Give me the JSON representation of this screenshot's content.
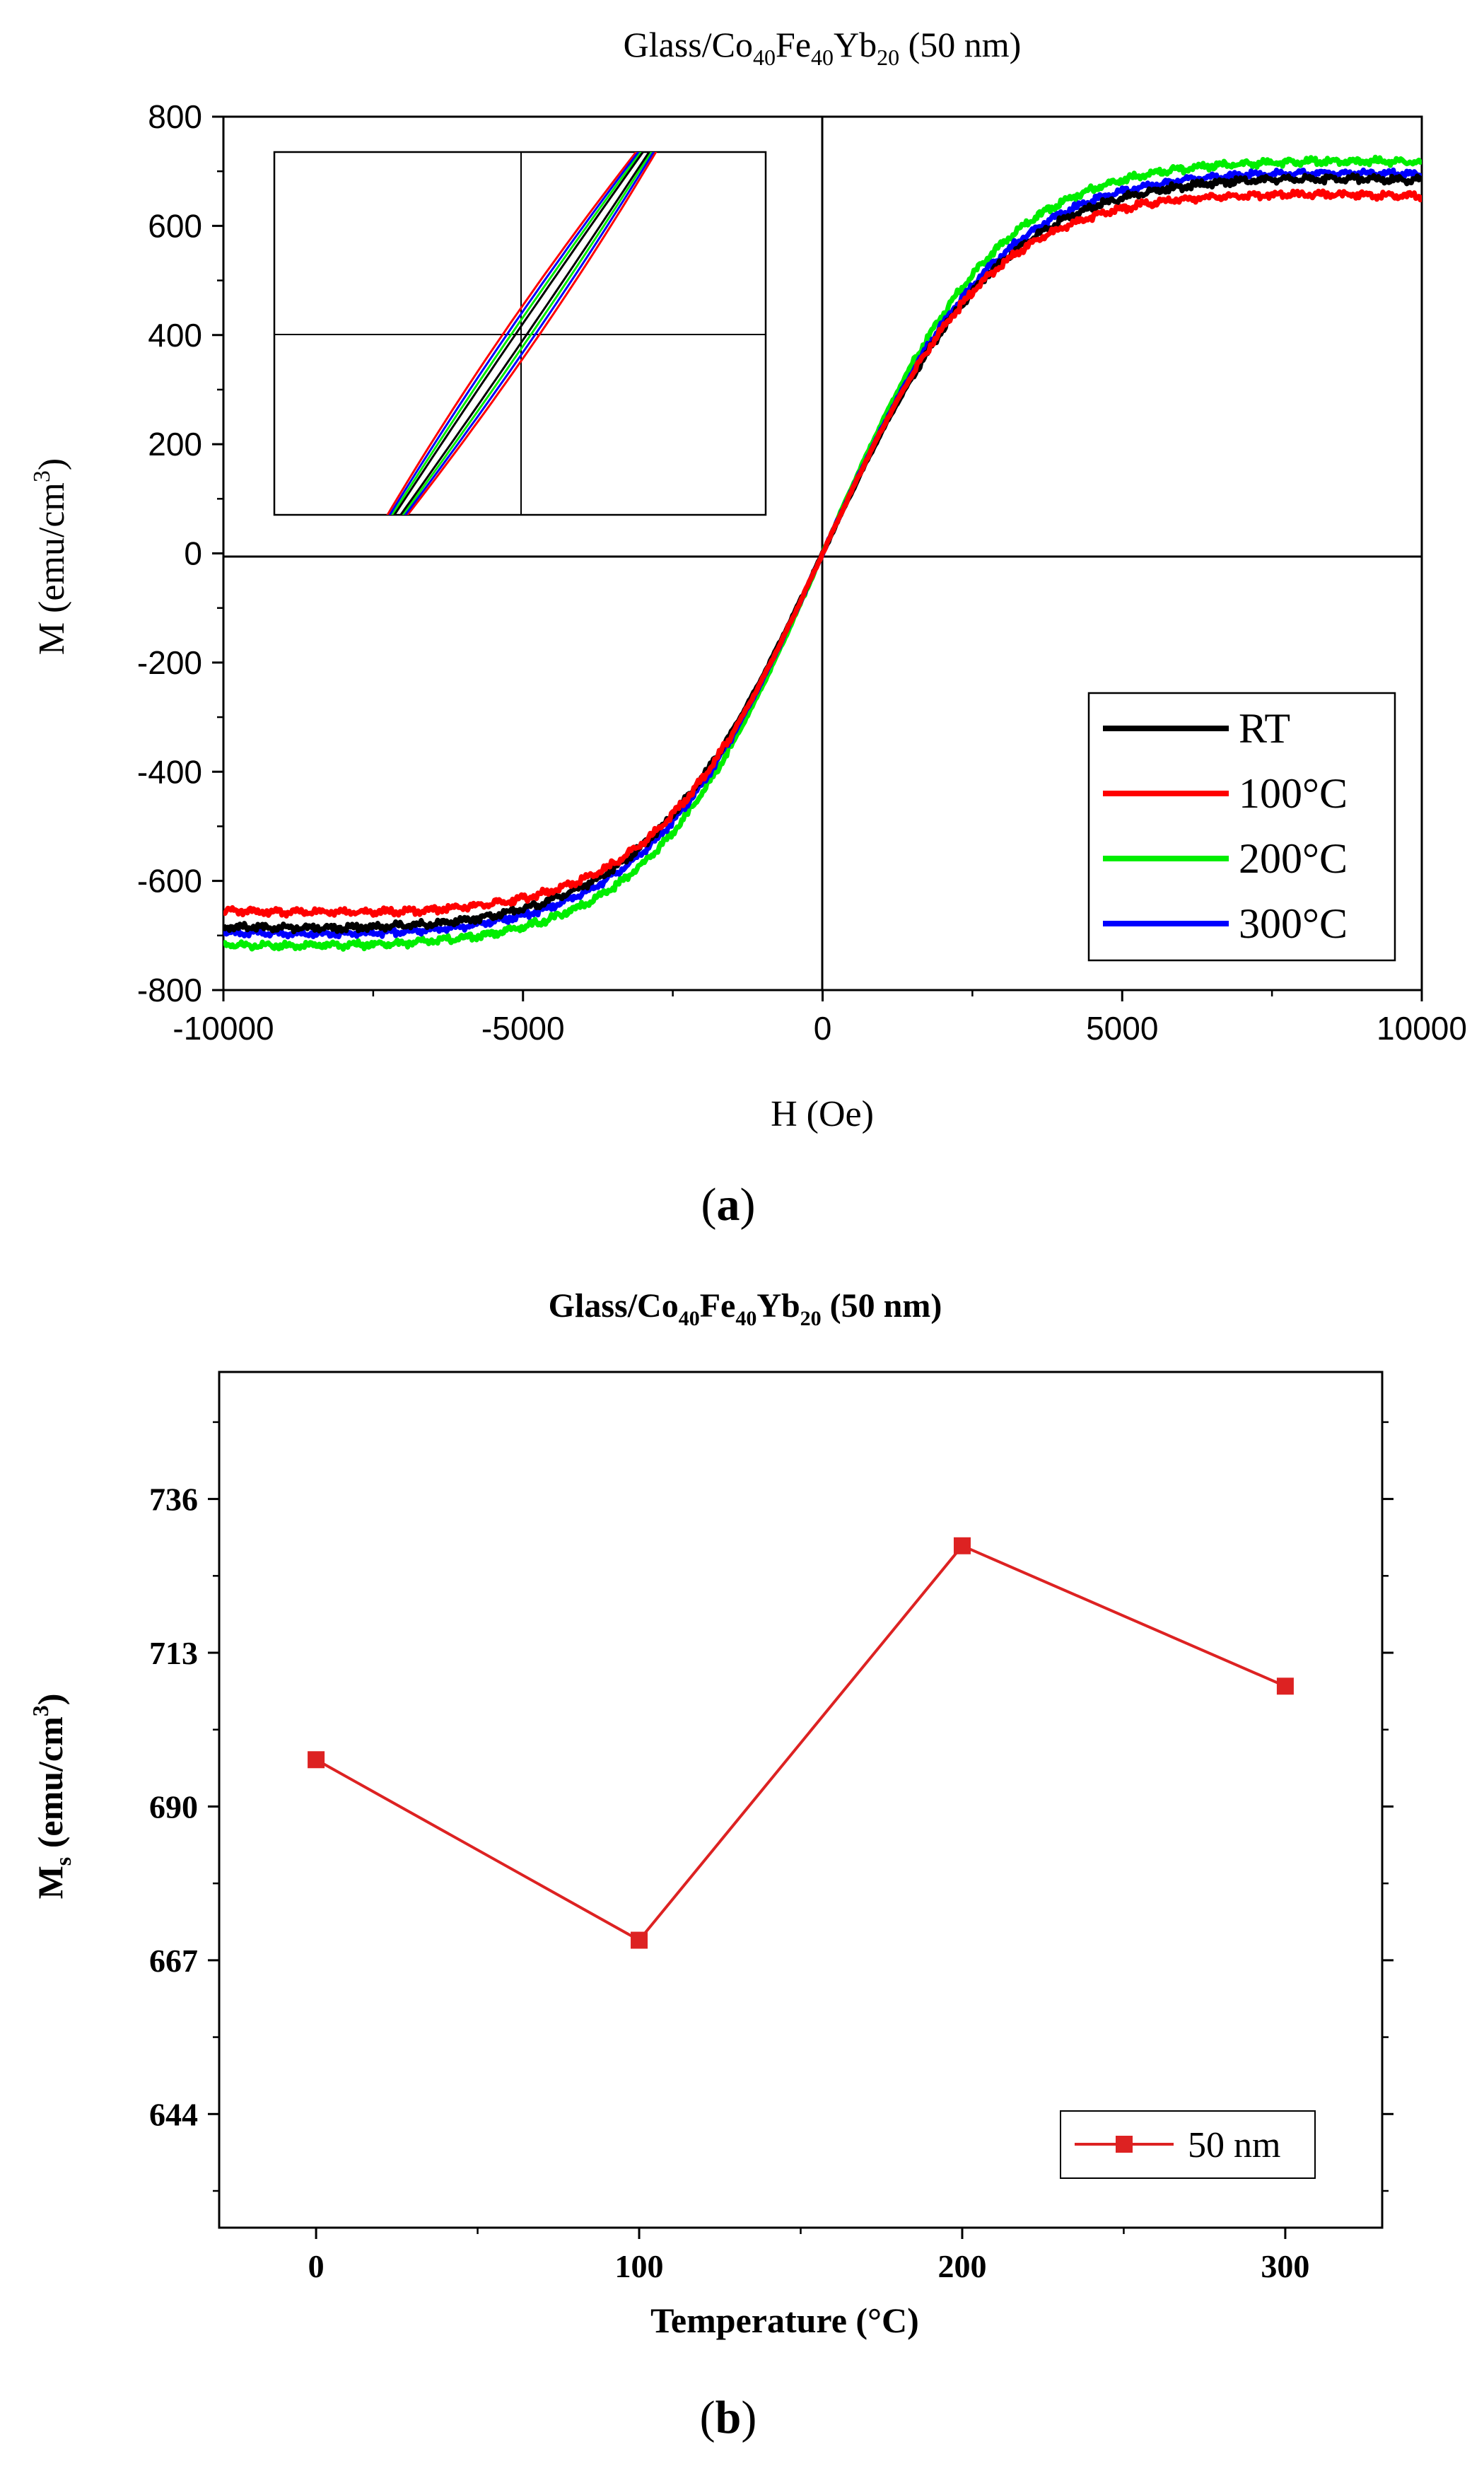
{
  "chart_data": [
    {
      "panel_label": "a",
      "type": "line",
      "title": {
        "prefix": "Glass/Co",
        "s1": "40",
        "m1": "Fe",
        "s2": "40",
        "m2": "Yb",
        "s3": "20",
        "suffix": " (50 nm)"
      },
      "xlabel": "H (Oe)",
      "ylabel": {
        "main": "M (emu/cm",
        "sup": "3",
        "end": ")"
      },
      "xlim": [
        -10000,
        10000
      ],
      "ylim": [
        -800,
        800
      ],
      "xticks": [
        -10000,
        -5000,
        0,
        5000,
        10000
      ],
      "yticks": [
        -800,
        -600,
        -400,
        -200,
        0,
        200,
        400,
        600,
        800
      ],
      "legend_position": "bottom-right",
      "series": [
        {
          "name": "RT",
          "color": "#000000",
          "Ms": 695,
          "edge": 685,
          "Hsat": 3000
        },
        {
          "name": "100°C",
          "color": "#ff0000",
          "Ms": 665,
          "edge": 655,
          "Hsat": 2800
        },
        {
          "name": "200°C",
          "color": "#00ee00",
          "Ms": 725,
          "edge": 718,
          "Hsat": 2900
        },
        {
          "name": "300°C",
          "color": "#0000ff",
          "Ms": 705,
          "edge": 695,
          "Hsat": 2950
        }
      ],
      "inset": {
        "zero_lines": true
      }
    },
    {
      "panel_label": "b",
      "type": "line",
      "title": {
        "prefix": "Glass/Co",
        "s1": "40",
        "m1": "Fe",
        "s2": "40",
        "m2": "Yb",
        "s3": "20",
        "suffix": " (50 nm)"
      },
      "xlabel": "Temperature (°C)",
      "ylabel": {
        "main": "M",
        "sub": "s",
        "rest": " (emu/cm",
        "sup": "3",
        "end": ")"
      },
      "xlim": [
        -30,
        330
      ],
      "ylim": [
        627,
        755
      ],
      "xticks": [
        0,
        100,
        200,
        300
      ],
      "yticks": [
        644,
        667,
        690,
        713,
        736
      ],
      "legend_position": "bottom-right",
      "series": [
        {
          "name": "50 nm",
          "color": "#dd2222",
          "x": [
            0,
            100,
            200,
            300
          ],
          "y": [
            697,
            670,
            729,
            708
          ]
        }
      ]
    }
  ]
}
